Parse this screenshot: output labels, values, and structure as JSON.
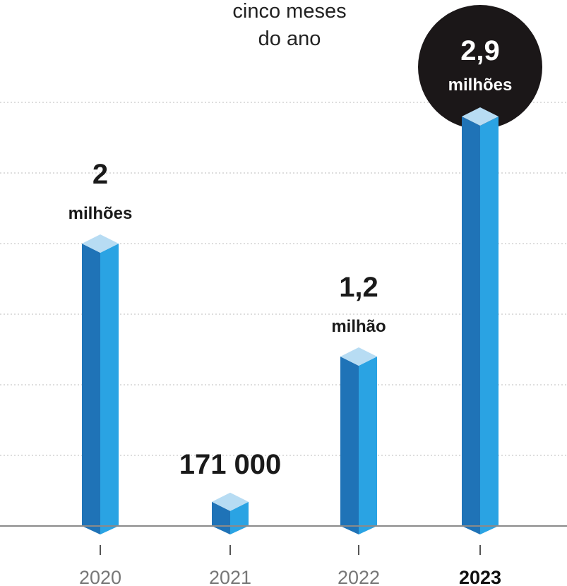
{
  "chart_data": {
    "type": "bar",
    "title_lines": [
      "cinco meses",
      "do ano"
    ],
    "categories": [
      "2020",
      "2021",
      "2022",
      "2023"
    ],
    "values": [
      2000000,
      171000,
      1200000,
      2900000
    ],
    "value_labels": [
      {
        "number": "2",
        "unit": "milhões"
      },
      {
        "number": "171 000",
        "unit": ""
      },
      {
        "number": "1,2",
        "unit": "milhão"
      },
      {
        "number": "2,9",
        "unit": "milhões"
      }
    ],
    "highlight_category": "2023",
    "ylim": [
      0,
      3000000
    ],
    "grid": true,
    "colors": {
      "bar_front": "#1f73b7",
      "bar_side": "#2aa3e3",
      "bar_top": "#b7dcf3",
      "highlight_circle": "#1b1718",
      "grid": "#bdbdbd"
    }
  }
}
